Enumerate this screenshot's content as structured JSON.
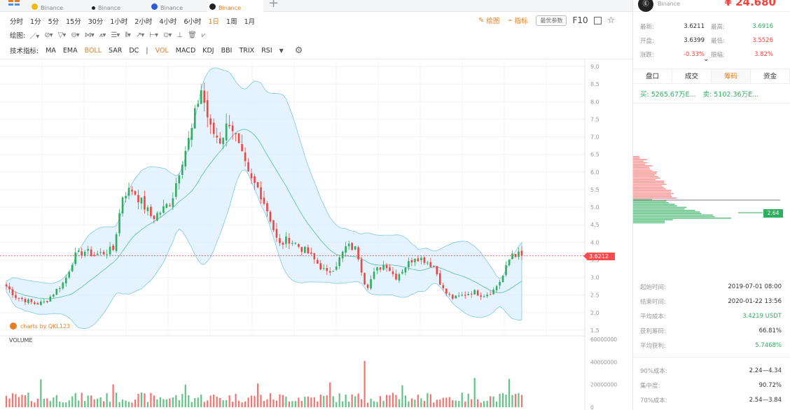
{
  "tabs": [
    {
      "exchange": "Binance",
      "icon_color": "#f0b90b",
      "active": false
    },
    {
      "exchange": "Binance",
      "icon_color": "#222222",
      "active": false
    },
    {
      "exchange": "Binance",
      "icon_color": "#2a5ada",
      "active": false
    },
    {
      "exchange": "Binance",
      "icon_color": "#222222",
      "active": true
    }
  ],
  "toolbar": {
    "timeframes": [
      "分时",
      "1分",
      "5分",
      "15分",
      "30分",
      "1小时",
      "2小时",
      "4小时",
      "6小时",
      "1日",
      "1周",
      "1月"
    ],
    "active_timeframe": "1日",
    "draw_label": "绘图:",
    "indicator_label": "技术指标:",
    "main_indicators": [
      "MA",
      "EMA",
      "BOLL",
      "SAR",
      "DC"
    ],
    "active_main_indicator": "BOLL",
    "sub_indicators": [
      "VOL",
      "MACD",
      "KDJ",
      "BBI",
      "TRIX",
      "RSI"
    ],
    "active_sub_indicator": "VOL",
    "draw_btn": "绘图",
    "indicator_btn": "指标",
    "params_btn": "最优参数",
    "f10": "F10"
  },
  "chart": {
    "watermark": "charts by QKL123",
    "volume_label": "VOLUME",
    "price_ticks": [
      "9.0",
      "8.5",
      "8.0",
      "7.5",
      "7.0",
      "6.5",
      "6.0",
      "5.5",
      "5.0",
      "4.5",
      "4.0",
      "3.5",
      "3.0",
      "2.5",
      "2.0",
      "1.5"
    ],
    "volume_ticks": [
      "60000000",
      "40000000",
      "20000000",
      "0"
    ],
    "current_price": "3.6212",
    "up_color": "#2fae5d",
    "down_color": "#f0443f",
    "boll_color": "#7ec8e3"
  },
  "chart_data": {
    "type": "candlestick",
    "y_range": [
      1.5,
      9.0
    ],
    "volume_range": [
      0,
      60000000
    ],
    "current_price": 3.6212,
    "description_points": {
      "close": [
        2.75,
        2.45,
        2.35,
        2.25,
        2.3,
        2.6,
        2.9,
        3.6,
        3.75,
        3.65,
        3.7,
        3.8,
        5.4,
        5.5,
        5.1,
        4.7,
        4.9,
        5.2,
        6.3,
        7.1,
        8.4,
        7.2,
        6.9,
        7.5,
        6.6,
        5.8,
        5.5,
        4.8,
        3.9,
        4.1,
        3.9,
        3.7,
        3.4,
        3.1,
        3.4,
        3.9,
        3.8,
        2.7,
        3.2,
        3.4,
        3.0,
        3.3,
        3.6,
        3.5,
        3.3,
        2.6,
        2.4,
        2.5,
        2.6,
        2.5,
        2.6,
        3.0,
        3.7,
        3.62
      ]
    }
  },
  "panel": {
    "coin_exchange": "Binance",
    "cny_price": "¥ 24.680",
    "stats": [
      {
        "k": "最新:",
        "v": "3.6211",
        "k2": "最高:",
        "v2": "3.6916",
        "c2": "green"
      },
      {
        "k": "开盘:",
        "v": "3.6399",
        "k2": "最低:",
        "v2": "3.5526",
        "c2": "red"
      },
      {
        "k": "涨跌:",
        "v": "-0.33%",
        "k2": "振幅:",
        "v2": "3.82%",
        "c1": "red",
        "c2": "red"
      }
    ],
    "tabs": [
      "盘口",
      "成交",
      "筹码",
      "资金"
    ],
    "active_tab": "筹码",
    "buy": "买: 5265.67万E...",
    "sell": "卖: 5102.36万E...",
    "depth_tag": "2.64",
    "info1": [
      {
        "k": "起始时间:",
        "v": "2019-07-01 08:00"
      },
      {
        "k": "结束时间:",
        "v": "2020-01-22 13:56"
      },
      {
        "k": "平均成本:",
        "v": "3.4219 USDT",
        "c": "green"
      },
      {
        "k": "获利筹码:",
        "v": "66.81%"
      },
      {
        "k": "平均获利:",
        "v": "5.7468%",
        "c": "green"
      }
    ],
    "info2": [
      {
        "k": "90%成本:",
        "v": "2.24—4.34"
      },
      {
        "k": "集中度:",
        "v": "90.72%"
      },
      {
        "k": "70%成本:",
        "v": "2.54—3.84"
      }
    ]
  }
}
